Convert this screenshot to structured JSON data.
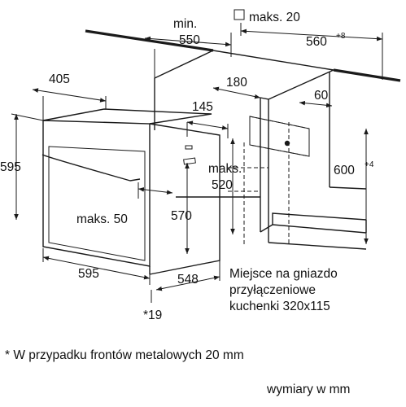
{
  "dims": {
    "min_label": "min.",
    "min_550": "550",
    "maks_20": "maks. 20",
    "d560": "560",
    "d560_sup": "+8",
    "d405": "405",
    "d180": "180",
    "d145": "145",
    "d60": "60",
    "d595_height": "595",
    "maks_label": "maks.",
    "d520": "520",
    "d600": "600",
    "d600_sup": "+4",
    "maks_50": "maks. 50",
    "d570": "570",
    "d595_width": "595",
    "d548": "548",
    "d19": "*19"
  },
  "socket_note": {
    "line1": "Miejsce na gniazdo",
    "line2": "przyłączeniowe",
    "line3": "kuchenki 320x115"
  },
  "footnote": "* W przypadku frontów metalowych 20 mm",
  "units": "wymiary w mm"
}
